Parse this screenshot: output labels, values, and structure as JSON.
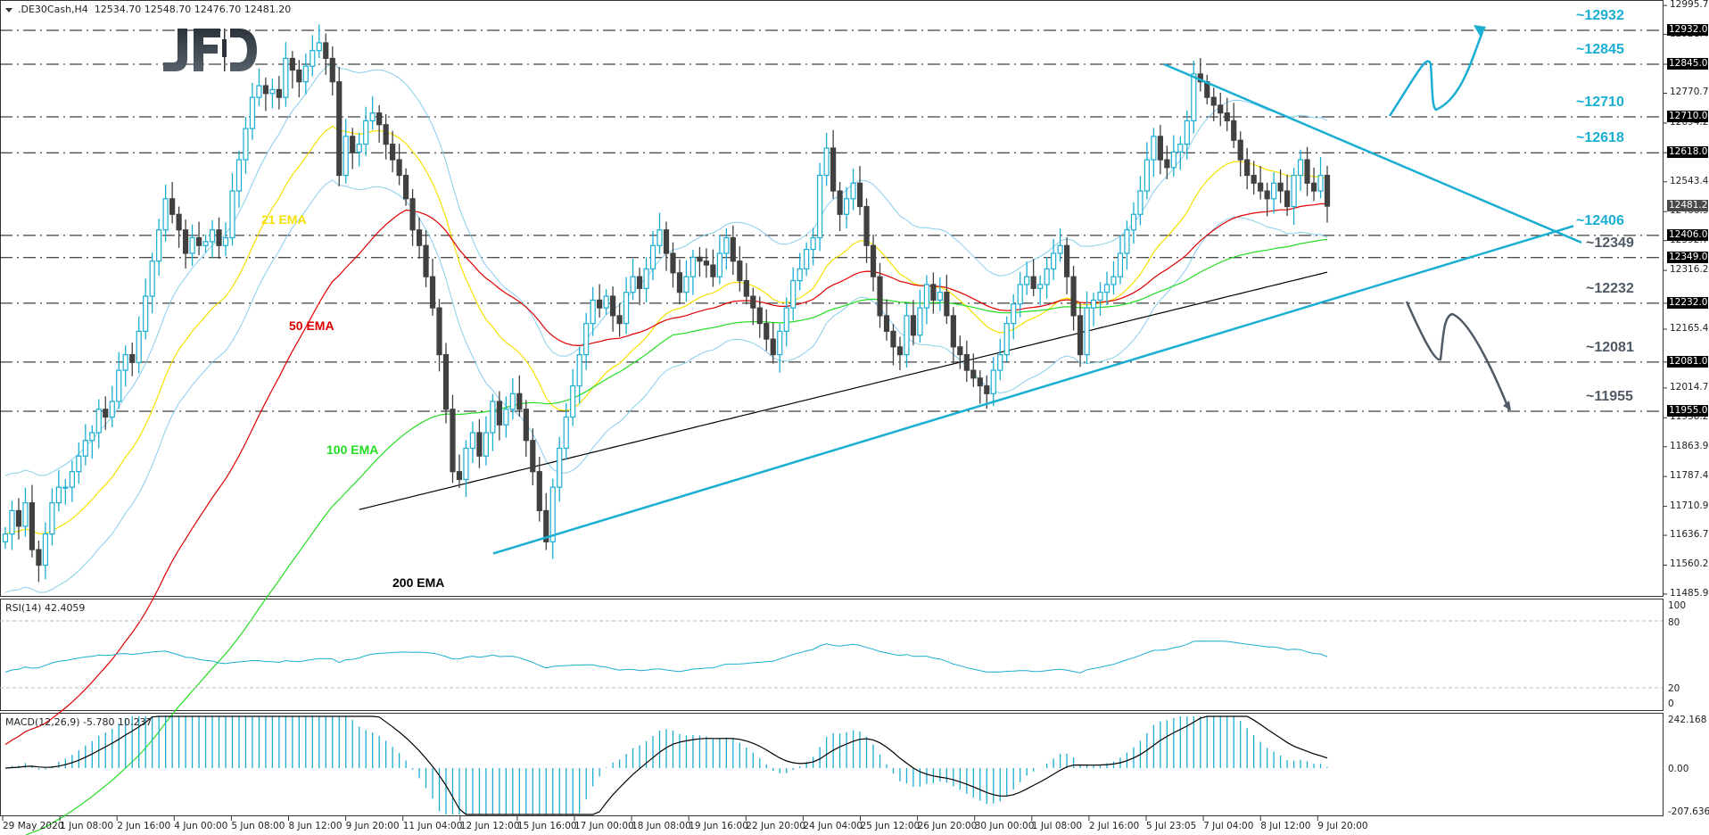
{
  "header": {
    "symbol": ".DE30Cash,H4",
    "ohlc": "12534.70 12548.70 12476.70 12481.20"
  },
  "logo": {
    "text": "JFD"
  },
  "colors": {
    "bull": "#1aaed2",
    "bear": "#404040",
    "ema21": "#f5e000",
    "ema50": "#e00000",
    "ema100": "#22dd22",
    "ema200": "#000000",
    "bollinger": "#87ceeb",
    "trend": "#1aaed2",
    "level_up": "#1aaed2",
    "level_down": "#505a66"
  },
  "rsi_panel": {
    "label": "RSI(14) 42.4059",
    "ticks": [
      "100",
      "80",
      "20",
      "0"
    ]
  },
  "macd_panel": {
    "label": "MACD(12,26,9) -5.780 10.237",
    "ticks": [
      "242.168",
      "0.00",
      "-207.636"
    ]
  },
  "price_axis": {
    "ticks": [
      "12995.70",
      "12921.45",
      "12845.00",
      "12770.70",
      "12694.20",
      "12618.00",
      "12543.45",
      "12466.95",
      "12392.70",
      "12316.20",
      "12232.00",
      "12165.45",
      "12081.00",
      "12014.70",
      "11938.20",
      "11863.95",
      "11787.45",
      "11710.95",
      "11636.70",
      "11560.20",
      "11485.95"
    ],
    "tags": [
      "12932.00",
      "12845.00",
      "12710.00",
      "12618.00",
      "12481.20",
      "12406.00",
      "12349.00",
      "12232.00",
      "12081.00",
      "11955.00"
    ],
    "current_price": "12481.20"
  },
  "levels": [
    {
      "label": "~12932",
      "value": 12932,
      "dir": "up"
    },
    {
      "label": "~12845",
      "value": 12845,
      "dir": "up"
    },
    {
      "label": "~12710",
      "value": 12710,
      "dir": "up"
    },
    {
      "label": "~12618",
      "value": 12618,
      "dir": "up"
    },
    {
      "label": "~12406",
      "value": 12406,
      "dir": "up"
    },
    {
      "label": "~12349",
      "value": 12349,
      "dir": "down"
    },
    {
      "label": "~12232",
      "value": 12232,
      "dir": "down"
    },
    {
      "label": "~12081",
      "value": 12081,
      "dir": "down"
    },
    {
      "label": "~11955",
      "value": 11955,
      "dir": "down"
    }
  ],
  "ema_labels": [
    {
      "label": "21 EMA",
      "color_key": "ema21"
    },
    {
      "label": "50 EMA",
      "color_key": "ema50"
    },
    {
      "label": "100 EMA",
      "color_key": "ema100"
    },
    {
      "label": "200 EMA",
      "color_key": "ema200"
    }
  ],
  "time_axis": [
    "29 May 2020",
    "1 Jun 08:00",
    "2 Jun 16:00",
    "4 Jun 00:00",
    "5 Jun 08:00",
    "8 Jun 12:00",
    "9 Jun 20:00",
    "11 Jun 04:00",
    "12 Jun 12:00",
    "15 Jun 16:00",
    "17 Jun 00:00",
    "18 Jun 08:00",
    "19 Jun 16:00",
    "22 Jun 20:00",
    "24 Jun 04:00",
    "25 Jun 12:00",
    "26 Jun 20:00",
    "30 Jun 00:00",
    "1 Jul 08:00",
    "2 Jul 16:00",
    "5 Jul 23:05",
    "7 Jul 04:00",
    "8 Jul 12:00",
    "9 Jul 20:00"
  ],
  "chart_data": {
    "type": "candlestick",
    "title": ".DE30Cash,H4",
    "xlabel": "",
    "ylabel": "",
    "ylim": [
      11485.95,
      12995.7
    ],
    "grid": false,
    "closes": [
      11640,
      11700,
      11660,
      11720,
      11600,
      11560,
      11640,
      11720,
      11760,
      11760,
      11800,
      11840,
      11880,
      11900,
      11960,
      11940,
      11980,
      12060,
      12100,
      12080,
      12160,
      12250,
      12340,
      12420,
      12500,
      12460,
      12420,
      12360,
      12400,
      12380,
      12390,
      12420,
      12380,
      12400,
      12520,
      12600,
      12680,
      12760,
      12790,
      12770,
      12780,
      12760,
      12860,
      12830,
      12800,
      12840,
      12880,
      12900,
      12860,
      12800,
      12560,
      12660,
      12620,
      12640,
      12700,
      12720,
      12690,
      12640,
      12600,
      12560,
      12500,
      12420,
      12380,
      12300,
      12220,
      12100,
      11960,
      11800,
      11780,
      11860,
      11900,
      11840,
      11900,
      11980,
      11920,
      11960,
      12000,
      11960,
      11880,
      11800,
      11700,
      11620,
      11760,
      11860,
      11940,
      12020,
      12100,
      12180,
      12240,
      12220,
      12250,
      12200,
      12180,
      12260,
      12300,
      12270,
      12320,
      12380,
      12420,
      12360,
      12310,
      12260,
      12300,
      12350,
      12340,
      12330,
      12300,
      12360,
      12400,
      12340,
      12290,
      12250,
      12220,
      12180,
      12140,
      12100,
      12160,
      12220,
      12290,
      12320,
      12370,
      12400,
      12560,
      12630,
      12520,
      12460,
      12500,
      12540,
      12480,
      12380,
      12300,
      12200,
      12160,
      12120,
      12100,
      12200,
      12150,
      12220,
      12280,
      12240,
      12260,
      12200,
      12120,
      12100,
      12060,
      12040,
      12020,
      12000,
      12060,
      12100,
      12180,
      12230,
      12280,
      12300,
      12270,
      12280,
      12320,
      12360,
      12380,
      12300,
      12200,
      12100,
      12220,
      12240,
      12260,
      12280,
      12300,
      12360,
      12420,
      12460,
      12520,
      12600,
      12660,
      12600,
      12580,
      12620,
      12640,
      12700,
      12820,
      12800,
      12760,
      12740,
      12720,
      12700,
      12650,
      12600,
      12560,
      12540,
      12520,
      12500,
      12540,
      12520,
      12480,
      12560,
      12600,
      12540,
      12520,
      12560,
      12481
    ],
    "ema_notes": [
      "21 EMA",
      "50 EMA",
      "100 EMA",
      "200 EMA"
    ],
    "rsi": {
      "value": 42.4059,
      "levels": [
        80,
        20
      ],
      "range": [
        0,
        100
      ]
    },
    "macd": {
      "main": -5.78,
      "signal": 10.237,
      "range": [
        -207.636,
        242.168
      ]
    },
    "horizontal_levels": [
      12932,
      12845,
      12710,
      12618,
      12406,
      12349,
      12232,
      12081,
      11955
    ],
    "trendlines": [
      {
        "name": "descending resistance",
        "from": {
          "date": "5 Jul 23:05",
          "price": 12845
        },
        "to": {
          "price": 12406
        }
      },
      {
        "name": "ascending support",
        "from": {
          "date": "12 Jun 12:00",
          "price": 11600
        },
        "to": {
          "price": 12420
        }
      }
    ],
    "scenario_arrows": [
      {
        "direction": "up",
        "from": 12710,
        "to": 12932
      },
      {
        "direction": "down",
        "from": 12232,
        "to": 11955
      }
    ],
    "x_tick_labels": [
      "29 May 2020",
      "1 Jun 08:00",
      "2 Jun 16:00",
      "4 Jun 00:00",
      "5 Jun 08:00",
      "8 Jun 12:00",
      "9 Jun 20:00",
      "11 Jun 04:00",
      "12 Jun 12:00",
      "15 Jun 16:00",
      "17 Jun 00:00",
      "18 Jun 08:00",
      "19 Jun 16:00",
      "22 Jun 20:00",
      "24 Jun 04:00",
      "25 Jun 12:00",
      "26 Jun 20:00",
      "30 Jun 00:00",
      "1 Jul 08:00",
      "2 Jul 16:00",
      "5 Jul 23:05",
      "7 Jul 04:00",
      "8 Jul 12:00",
      "9 Jul 20:00"
    ]
  }
}
